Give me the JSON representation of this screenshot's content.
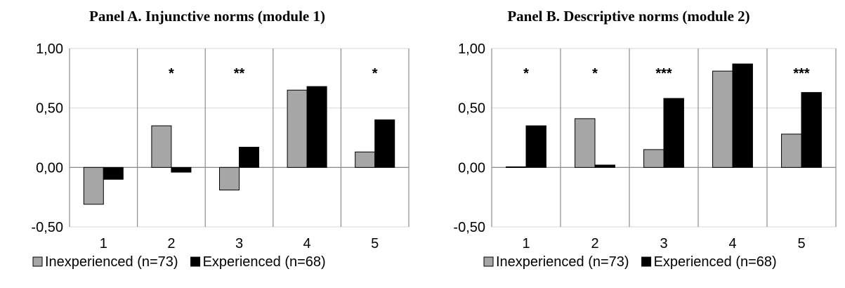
{
  "chart_data": [
    {
      "type": "bar",
      "title": "Panel A. Injunctive norms (module 1)",
      "categories": [
        "1",
        "2",
        "3",
        "4",
        "5"
      ],
      "series": [
        {
          "name": "Inexperienced (n=73)",
          "values": [
            -0.31,
            0.35,
            -0.19,
            0.65,
            0.13
          ],
          "color": "#a6a6a6"
        },
        {
          "name": "Experienced (n=68)",
          "values": [
            -0.1,
            -0.04,
            0.17,
            0.68,
            0.4
          ],
          "color": "#000000"
        }
      ],
      "significance": [
        "",
        "*",
        "**",
        "",
        "*"
      ],
      "ylim": [
        -0.5,
        1.0
      ],
      "yticks": [
        "1,00",
        "0,50",
        "0,00",
        "-0,50"
      ],
      "grid": true,
      "legend_position": "bottom"
    },
    {
      "type": "bar",
      "title": "Panel B. Descriptive norms (module 2)",
      "categories": [
        "1",
        "2",
        "3",
        "4",
        "5"
      ],
      "series": [
        {
          "name": "Inexperienced (n=73)",
          "values": [
            0.005,
            0.41,
            0.15,
            0.81,
            0.28
          ],
          "color": "#a6a6a6"
        },
        {
          "name": "Experienced (n=68)",
          "values": [
            0.35,
            0.02,
            0.58,
            0.87,
            0.63
          ],
          "color": "#000000"
        }
      ],
      "significance": [
        "*",
        "*",
        "***",
        "",
        "***"
      ],
      "ylim": [
        -0.5,
        1.0
      ],
      "yticks": [
        "1,00",
        "0,50",
        "0,00",
        "-0,50"
      ],
      "grid": true,
      "legend_position": "bottom"
    }
  ]
}
